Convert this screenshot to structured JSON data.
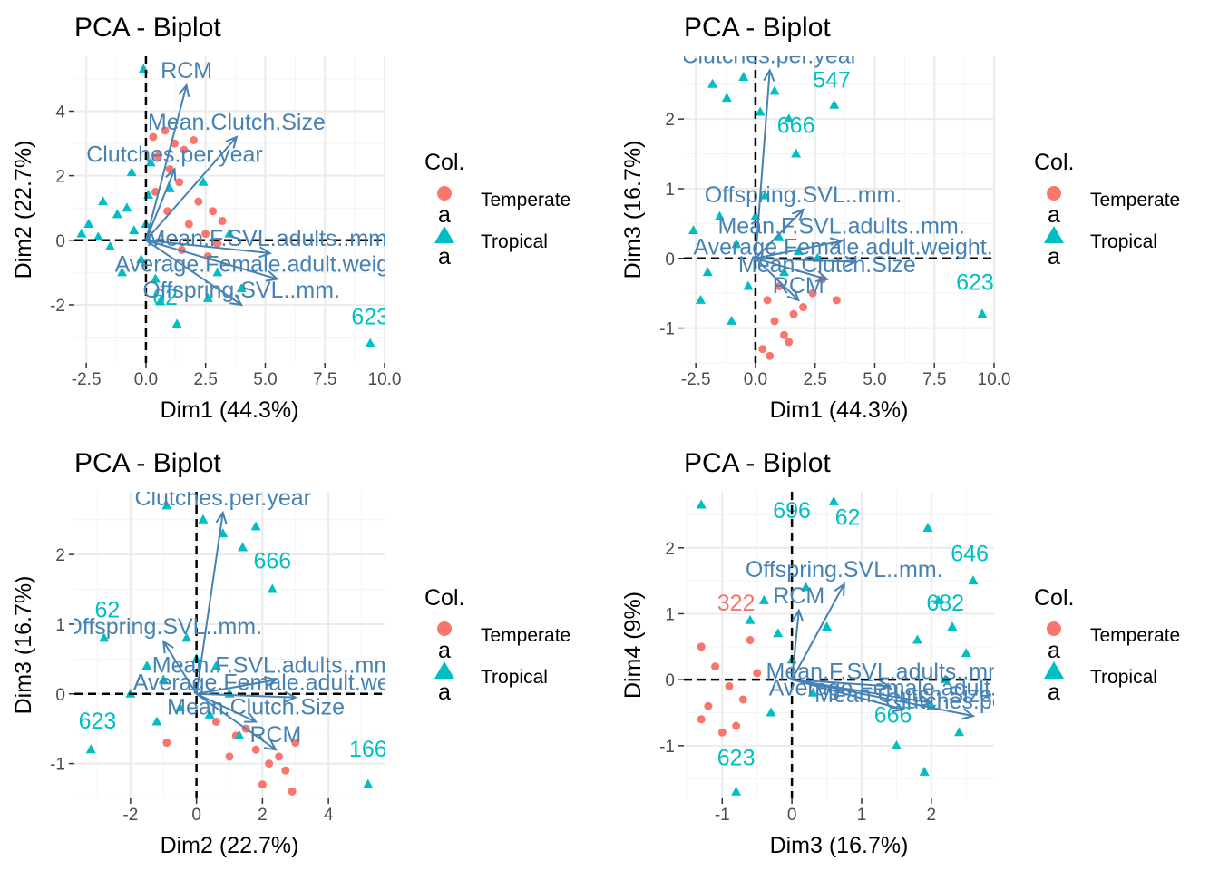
{
  "colors": {
    "temperate": "#F8766D",
    "tropical": "#00BFC4",
    "arrow": "#4682B4",
    "panel": "#ffffff",
    "grid_major": "#ebebeb",
    "grid_minor": "#f4f4f4"
  },
  "legend": {
    "title": "Col.",
    "items": [
      {
        "label": "Temperate",
        "glyph": "a",
        "color": "#F8766D",
        "shape": "circle"
      },
      {
        "label": "Tropical",
        "glyph": "a",
        "color": "#00BFC4",
        "shape": "triangle"
      }
    ]
  },
  "chart_data": [
    {
      "type": "scatter",
      "title": "PCA - Biplot",
      "xlabel": "Dim1 (44.3%)",
      "ylabel": "Dim2 (22.7%)",
      "xlim": [
        -3.0,
        10.0
      ],
      "ylim": [
        -3.8,
        5.7
      ],
      "xticks": [
        -2.5,
        0.0,
        2.5,
        5.0,
        7.5,
        10.0
      ],
      "xtick_labels": [
        "-2.5",
        "0.0",
        "2.5",
        "5.0",
        "7.5",
        "10.0"
      ],
      "yticks": [
        -2,
        0,
        2,
        4
      ],
      "ytick_labels": [
        "-2",
        "0",
        "2",
        "4"
      ],
      "series": [
        {
          "name": "Temperate",
          "points": [
            [
              0.3,
              3.2
            ],
            [
              0.8,
              3.4
            ],
            [
              1.2,
              3.0
            ],
            [
              1.6,
              2.8
            ],
            [
              2.0,
              3.1
            ],
            [
              0.5,
              2.6
            ],
            [
              1.0,
              2.2
            ],
            [
              1.4,
              1.8
            ],
            [
              2.2,
              1.2
            ],
            [
              2.8,
              0.9
            ],
            [
              3.2,
              0.6
            ],
            [
              2.5,
              0.2
            ],
            [
              3.0,
              -0.1
            ],
            [
              1.8,
              0.5
            ],
            [
              0.4,
              1.5
            ],
            [
              0.9,
              0.9
            ],
            [
              1.5,
              -0.3
            ],
            [
              2.6,
              -0.5
            ]
          ]
        },
        {
          "name": "Tropical",
          "points": [
            [
              -0.1,
              5.3
            ],
            [
              9.4,
              -3.2
            ],
            [
              1.3,
              -2.6
            ],
            [
              0.6,
              -1.9
            ],
            [
              2.6,
              -1.8
            ],
            [
              4.0,
              -1.5
            ],
            [
              -2.4,
              0.5
            ],
            [
              -2.0,
              0.1
            ],
            [
              -1.5,
              -0.2
            ],
            [
              -1.2,
              0.8
            ],
            [
              -0.8,
              1.0
            ],
            [
              -0.5,
              0.3
            ],
            [
              -0.2,
              -0.6
            ],
            [
              0.1,
              1.4
            ],
            [
              0.4,
              -1.2
            ],
            [
              -1.8,
              1.2
            ],
            [
              -0.6,
              2.1
            ],
            [
              0.2,
              2.4
            ],
            [
              -2.7,
              0.2
            ],
            [
              -1.0,
              -1.0
            ],
            [
              0.0,
              0.5
            ],
            [
              1.0,
              1.6
            ],
            [
              2.4,
              1.8
            ],
            [
              3.5,
              0.2
            ],
            [
              3.0,
              -1.0
            ]
          ]
        }
      ],
      "variables": [
        {
          "name": "RCM",
          "x": 1.7,
          "y": 4.8
        },
        {
          "name": "Mean.Clutch.Size",
          "x": 3.8,
          "y": 3.2
        },
        {
          "name": "Clutches.per.year",
          "x": 1.2,
          "y": 2.2
        },
        {
          "name": "Mean.F.SVL.adults..mm.",
          "x": 5.2,
          "y": -0.4
        },
        {
          "name": "Average.Female.adult.weight..g.",
          "x": 5.5,
          "y": -1.2
        },
        {
          "name": "Offspring.SVL..mm.",
          "x": 4.0,
          "y": -2.0
        }
      ],
      "point_labels": [
        {
          "text": "623",
          "x": 9.4,
          "y": -2.6,
          "series": "Tropical"
        },
        {
          "text": "62",
          "x": 0.8,
          "y": -2.0,
          "series": "Tropical"
        }
      ]
    },
    {
      "type": "scatter",
      "title": "PCA - Biplot",
      "xlabel": "Dim1 (44.3%)",
      "ylabel": "Dim3 (16.7%)",
      "xlim": [
        -3.0,
        10.0
      ],
      "ylim": [
        -1.5,
        2.9
      ],
      "xticks": [
        -2.5,
        0.0,
        2.5,
        5.0,
        7.5,
        10.0
      ],
      "xtick_labels": [
        "-2.5",
        "0.0",
        "2.5",
        "5.0",
        "7.5",
        "10.0"
      ],
      "yticks": [
        -1,
        0,
        1,
        2
      ],
      "ytick_labels": [
        "-1",
        "0",
        "1",
        "2"
      ],
      "series": [
        {
          "name": "Temperate",
          "points": [
            [
              0.5,
              -0.6
            ],
            [
              0.8,
              -0.9
            ],
            [
              1.2,
              -1.1
            ],
            [
              0.3,
              -1.3
            ],
            [
              1.6,
              -0.8
            ],
            [
              2.0,
              -0.7
            ],
            [
              2.4,
              -0.5
            ],
            [
              1.0,
              -0.4
            ],
            [
              3.4,
              -0.6
            ],
            [
              0.6,
              -1.4
            ],
            [
              1.4,
              -1.2
            ],
            [
              2.8,
              -0.3
            ]
          ]
        },
        {
          "name": "Tropical",
          "points": [
            [
              -1.8,
              2.5
            ],
            [
              -1.2,
              2.3
            ],
            [
              -0.5,
              2.6
            ],
            [
              0.2,
              2.1
            ],
            [
              0.8,
              2.4
            ],
            [
              1.4,
              2.0
            ],
            [
              3.3,
              2.2
            ],
            [
              1.7,
              1.5
            ],
            [
              9.5,
              -0.8
            ],
            [
              -2.6,
              0.4
            ],
            [
              -2.0,
              -0.2
            ],
            [
              -1.5,
              0.6
            ],
            [
              -0.8,
              0.2
            ],
            [
              -0.3,
              -0.4
            ],
            [
              0.4,
              0.9
            ],
            [
              1.0,
              0.3
            ],
            [
              1.8,
              0.1
            ],
            [
              2.6,
              0.0
            ],
            [
              -1.0,
              -0.9
            ],
            [
              -2.3,
              -0.6
            ],
            [
              0.0,
              0.6
            ],
            [
              1.2,
              -0.2
            ]
          ]
        }
      ],
      "variables": [
        {
          "name": "Clutches.per.year",
          "x": 0.6,
          "y": 2.7
        },
        {
          "name": "Offspring.SVL..mm.",
          "x": 2.0,
          "y": 0.7
        },
        {
          "name": "Mean.F.SVL.adults..mm.",
          "x": 3.6,
          "y": 0.25
        },
        {
          "name": "Average.Female.adult.weight..g.",
          "x": 4.2,
          "y": -0.05
        },
        {
          "name": "Mean.Clutch.Size",
          "x": 3.0,
          "y": -0.3
        },
        {
          "name": "RCM",
          "x": 1.8,
          "y": -0.6
        }
      ],
      "point_labels": [
        {
          "text": "547",
          "x": 3.2,
          "y": 2.45,
          "series": "Tropical"
        },
        {
          "text": "666",
          "x": 1.7,
          "y": 1.8,
          "series": "Tropical"
        },
        {
          "text": "623",
          "x": 9.2,
          "y": -0.45,
          "series": "Tropical"
        }
      ]
    },
    {
      "type": "scatter",
      "title": "PCA - Biplot",
      "xlabel": "Dim2 (22.7%)",
      "ylabel": "Dim3 (16.7%)",
      "xlim": [
        -3.7,
        5.7
      ],
      "ylim": [
        -1.5,
        2.9
      ],
      "xticks": [
        -2,
        0,
        2,
        4
      ],
      "xtick_labels": [
        "-2",
        "0",
        "2",
        "4"
      ],
      "yticks": [
        -1,
        0,
        1,
        2
      ],
      "ytick_labels": [
        "-1",
        "0",
        "1",
        "2"
      ],
      "series": [
        {
          "name": "Temperate",
          "points": [
            [
              1.2,
              -0.6
            ],
            [
              1.8,
              -0.8
            ],
            [
              2.2,
              -1.0
            ],
            [
              2.5,
              -0.9
            ],
            [
              2.9,
              -1.4
            ],
            [
              2.0,
              -1.3
            ],
            [
              1.5,
              -0.5
            ],
            [
              3.0,
              -0.7
            ],
            [
              -0.9,
              -0.7
            ],
            [
              0.6,
              -0.4
            ],
            [
              2.7,
              -1.1
            ],
            [
              1.0,
              -0.9
            ]
          ]
        },
        {
          "name": "Tropical",
          "points": [
            [
              -0.9,
              2.7
            ],
            [
              0.2,
              2.5
            ],
            [
              0.8,
              2.3
            ],
            [
              1.4,
              2.1
            ],
            [
              1.8,
              2.4
            ],
            [
              2.3,
              1.5
            ],
            [
              5.2,
              -1.3
            ],
            [
              -3.2,
              -0.8
            ],
            [
              -2.8,
              0.8
            ],
            [
              -1.5,
              0.4
            ],
            [
              -1.0,
              0.2
            ],
            [
              -0.5,
              -0.2
            ],
            [
              0.0,
              0.5
            ],
            [
              0.4,
              -0.3
            ],
            [
              1.0,
              0.0
            ],
            [
              -2.0,
              0.0
            ],
            [
              -0.3,
              0.8
            ],
            [
              0.6,
              0.4
            ],
            [
              1.3,
              -0.6
            ],
            [
              -1.2,
              -0.4
            ]
          ]
        }
      ],
      "variables": [
        {
          "name": "Clutches.per.year",
          "x": 0.8,
          "y": 2.6
        },
        {
          "name": "Offspring.SVL..mm.",
          "x": -1.0,
          "y": 0.75
        },
        {
          "name": "Mean.F.SVL.adults..mm.",
          "x": 2.4,
          "y": 0.2
        },
        {
          "name": "Average.Female.adult.weight..g.",
          "x": 3.0,
          "y": -0.05
        },
        {
          "name": "Mean.Clutch.Size",
          "x": 1.8,
          "y": -0.4
        },
        {
          "name": "RCM",
          "x": 2.4,
          "y": -0.8
        }
      ],
      "point_labels": [
        {
          "text": "666",
          "x": 2.3,
          "y": 1.8,
          "series": "Tropical"
        },
        {
          "text": "623",
          "x": -3.0,
          "y": -0.5,
          "series": "Tropical"
        },
        {
          "text": "166",
          "x": 5.2,
          "y": -0.9,
          "series": "Tropical"
        },
        {
          "text": "62",
          "x": -2.7,
          "y": 1.1,
          "series": "Tropical"
        }
      ]
    },
    {
      "type": "scatter",
      "title": "PCA - Biplot",
      "xlabel": "Dim3 (16.7%)",
      "ylabel": "Dim4 (9%)",
      "xlim": [
        -1.55,
        2.9
      ],
      "ylim": [
        -1.8,
        2.85
      ],
      "xticks": [
        -1,
        0,
        1,
        2
      ],
      "xtick_labels": [
        "-1",
        "0",
        "1",
        "2"
      ],
      "yticks": [
        -1,
        0,
        1,
        2
      ],
      "ytick_labels": [
        "-1",
        "0",
        "1",
        "2"
      ],
      "series": [
        {
          "name": "Temperate",
          "points": [
            [
              -1.3,
              0.5
            ],
            [
              -1.1,
              0.2
            ],
            [
              -0.9,
              -0.1
            ],
            [
              -1.2,
              -0.4
            ],
            [
              -0.8,
              -0.7
            ],
            [
              -1.0,
              -0.8
            ],
            [
              -0.6,
              0.6
            ],
            [
              -0.7,
              -0.3
            ],
            [
              -1.3,
              -0.6
            ],
            [
              -0.5,
              0.1
            ]
          ]
        },
        {
          "name": "Tropical",
          "points": [
            [
              -1.3,
              2.65
            ],
            [
              0.6,
              2.7
            ],
            [
              1.95,
              2.3
            ],
            [
              2.1,
              1.2
            ],
            [
              2.3,
              0.8
            ],
            [
              2.5,
              0.4
            ],
            [
              2.2,
              0.0
            ],
            [
              2.0,
              -0.4
            ],
            [
              1.9,
              -1.4
            ],
            [
              1.5,
              -1.0
            ],
            [
              2.6,
              1.5
            ],
            [
              -0.8,
              -1.7
            ],
            [
              -0.4,
              1.2
            ],
            [
              -0.2,
              0.7
            ],
            [
              0.0,
              0.3
            ],
            [
              0.3,
              -0.2
            ],
            [
              -0.3,
              -0.5
            ],
            [
              0.2,
              1.4
            ],
            [
              0.5,
              0.8
            ],
            [
              -0.6,
              0.9
            ],
            [
              2.4,
              -0.8
            ],
            [
              1.8,
              0.6
            ]
          ]
        }
      ],
      "variables": [
        {
          "name": "Offspring.SVL..mm.",
          "x": 0.75,
          "y": 1.45
        },
        {
          "name": "RCM",
          "x": 0.1,
          "y": 1.05
        },
        {
          "name": "Mean.F.SVL.adults..mm.",
          "x": 1.4,
          "y": -0.1
        },
        {
          "name": "Average.Female.adult.weight..g.",
          "x": 2.0,
          "y": -0.35
        },
        {
          "name": "Mean.Clutch.Size",
          "x": 1.6,
          "y": -0.45
        },
        {
          "name": "Clutches.per.year",
          "x": 2.6,
          "y": -0.55
        }
      ],
      "point_labels": [
        {
          "text": "696",
          "x": 0.0,
          "y": 2.45,
          "series": "Tropical"
        },
        {
          "text": "62",
          "x": 0.8,
          "y": 2.35,
          "series": "Tropical"
        },
        {
          "text": "646",
          "x": 2.55,
          "y": 1.8,
          "series": "Tropical"
        },
        {
          "text": "682",
          "x": 2.2,
          "y": 1.05,
          "series": "Tropical"
        },
        {
          "text": "666",
          "x": 1.45,
          "y": -0.65,
          "series": "Tropical"
        },
        {
          "text": "623",
          "x": -0.8,
          "y": -1.3,
          "series": "Tropical"
        },
        {
          "text": "322",
          "x": -0.8,
          "y": 1.05,
          "series": "Temperate"
        }
      ]
    }
  ]
}
